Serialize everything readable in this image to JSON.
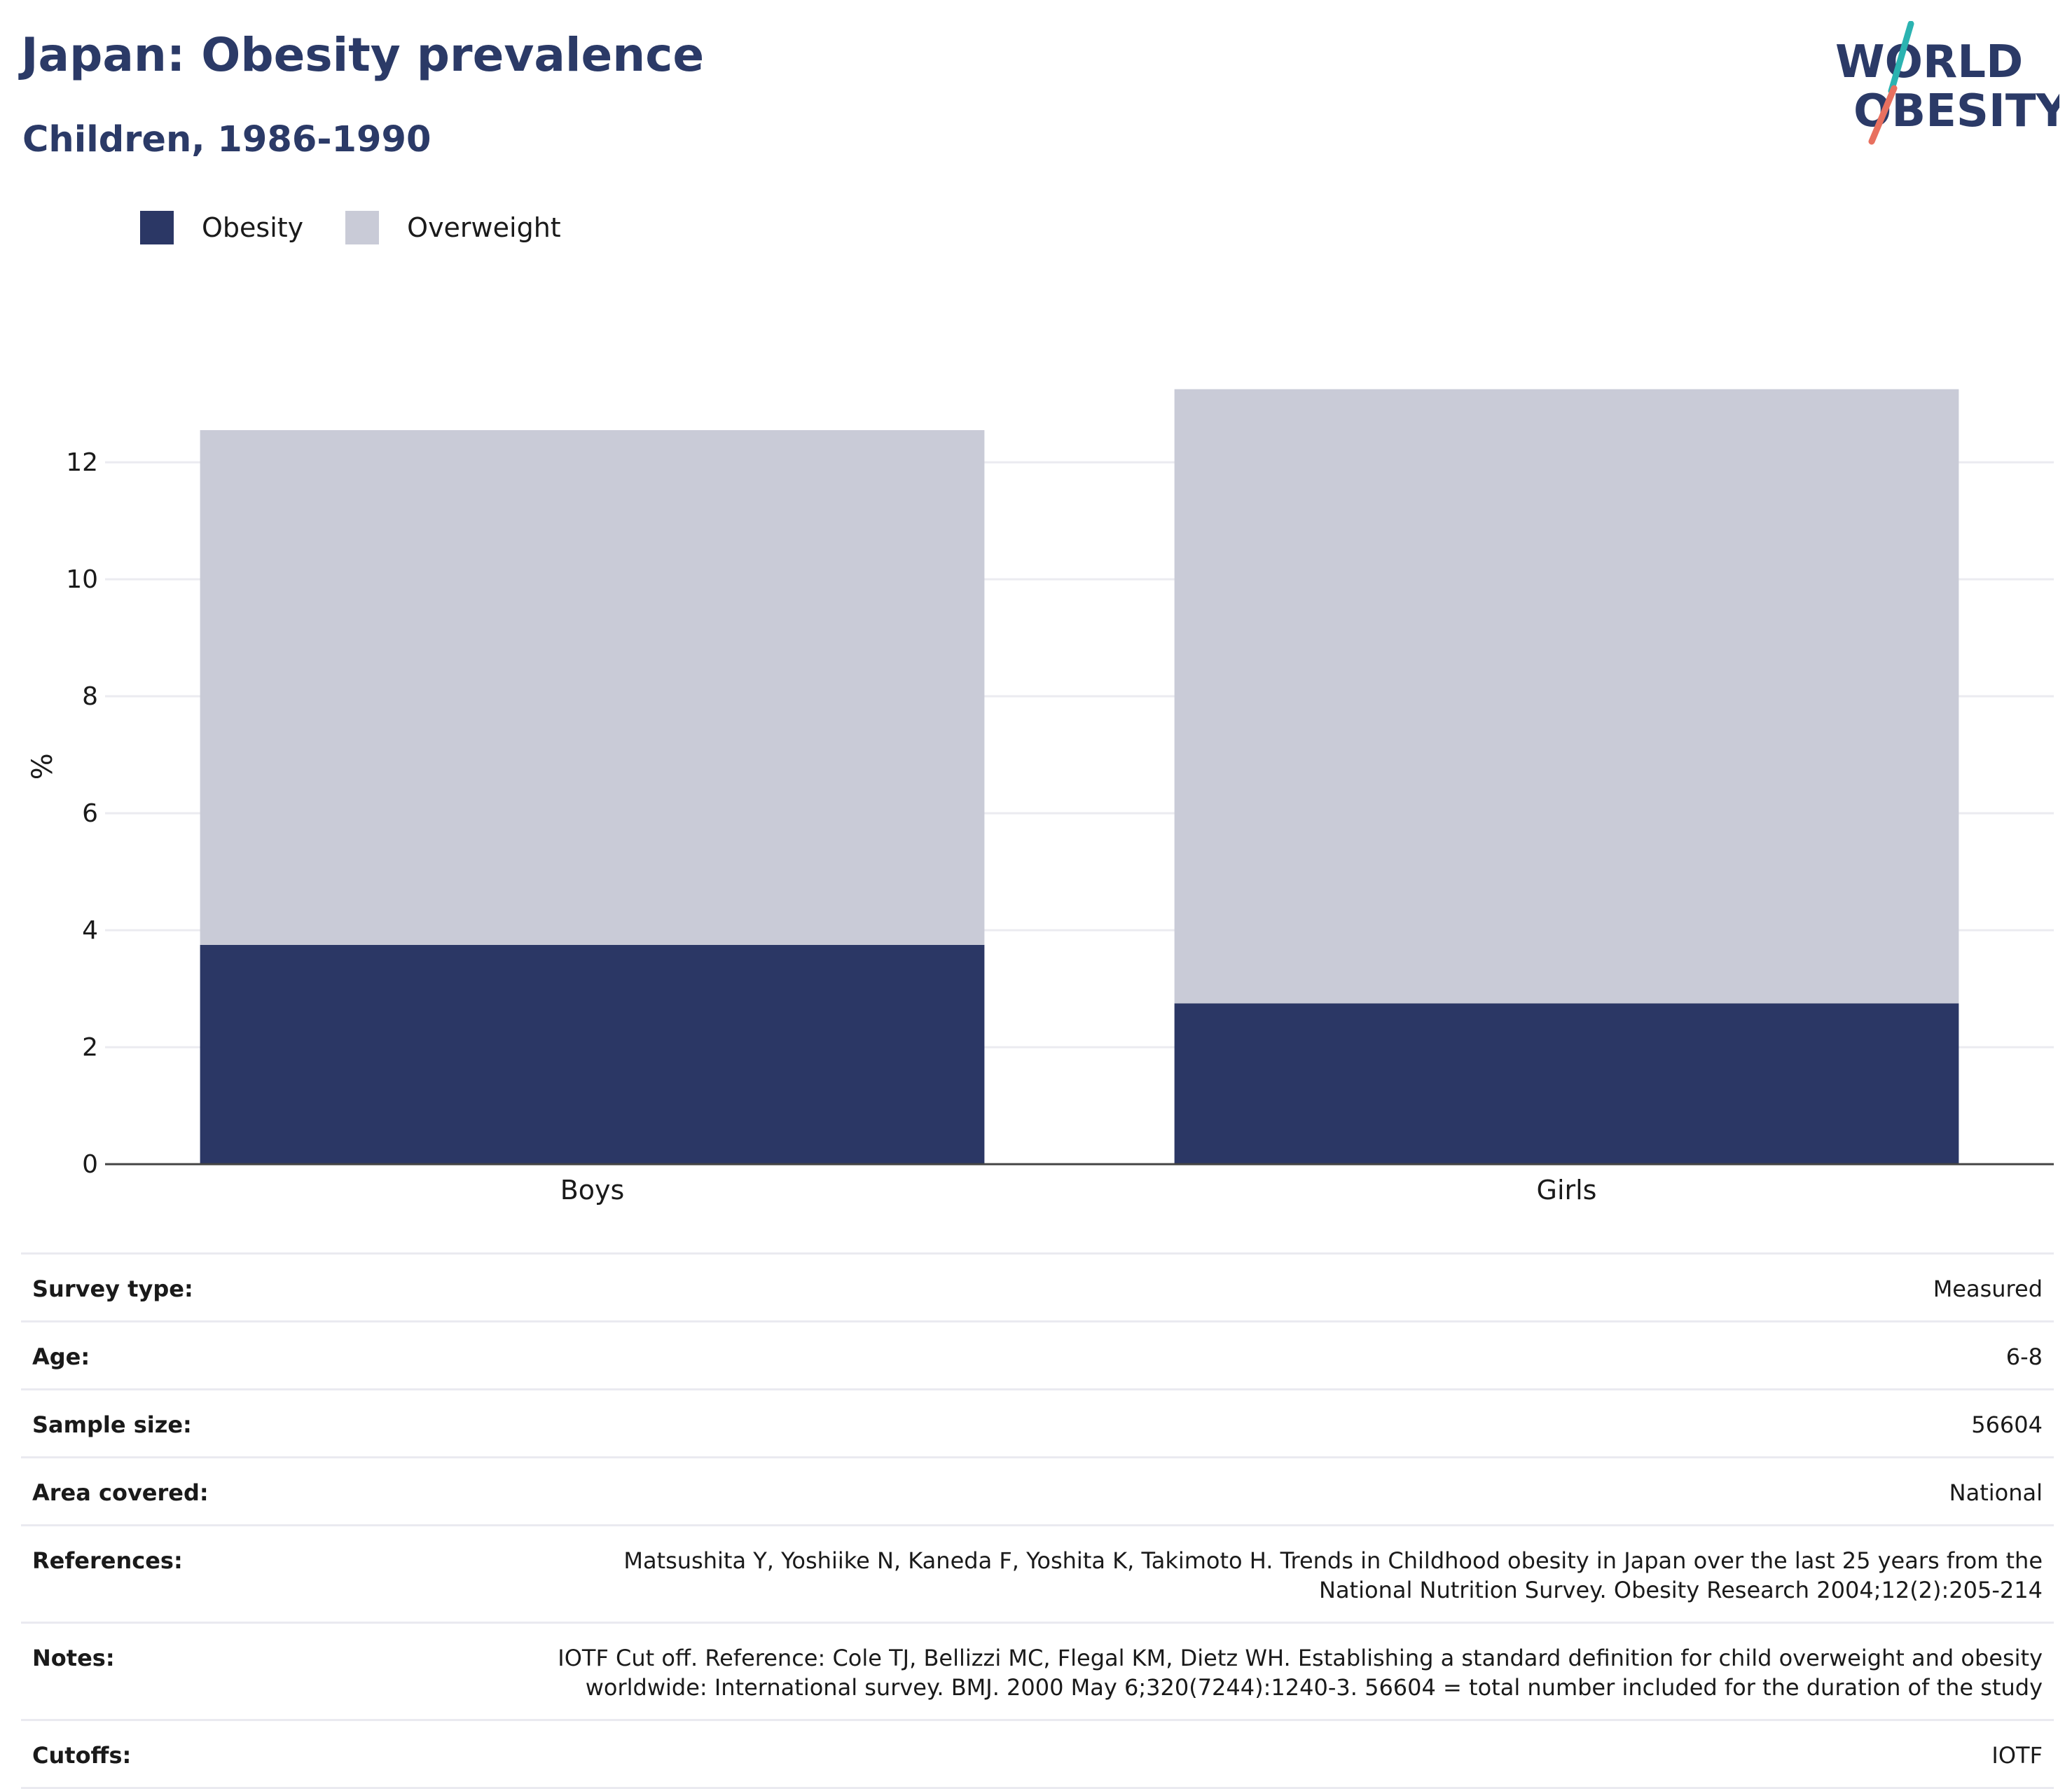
{
  "header": {
    "title": "Japan: Obesity prevalence",
    "subtitle": "Children, 1986-1990",
    "logo_line1": "WORLD",
    "logo_line2": "OBESITY"
  },
  "colors": {
    "obesity": "#2b3765",
    "overweight": "#c9cbd7",
    "title": "#2b3a67",
    "logo_teal": "#2bb3b1",
    "logo_coral": "#e8705f"
  },
  "chart_data": {
    "type": "bar",
    "stacked": true,
    "categories": [
      "Boys",
      "Girls"
    ],
    "series": [
      {
        "name": "Obesity",
        "values": [
          3.75,
          2.75
        ]
      },
      {
        "name": "Overweight",
        "values": [
          8.8,
          10.5
        ]
      }
    ],
    "xlabel": "",
    "ylabel": "%",
    "ylim": [
      0,
      13.6
    ],
    "yticks": [
      0,
      2,
      4,
      6,
      8,
      10,
      12
    ],
    "grid": true,
    "legend": "top-left"
  },
  "info": [
    {
      "key": "Survey type:",
      "value": "Measured"
    },
    {
      "key": "Age:",
      "value": "6-8"
    },
    {
      "key": "Sample size:",
      "value": "56604"
    },
    {
      "key": "Area covered:",
      "value": "National"
    },
    {
      "key": "References:",
      "value": "Matsushita Y, Yoshiike N, Kaneda F, Yoshita K, Takimoto H. Trends in Childhood obesity in Japan over the last 25 years from the National Nutrition Survey. Obesity Research 2004;12(2):205-214"
    },
    {
      "key": "Notes:",
      "value": "IOTF Cut off. Reference: Cole TJ, Bellizzi MC, Flegal KM, Dietz WH. Establishing a standard definition for child overweight and obesity worldwide: International survey. BMJ. 2000 May 6;320(7244):1240-3. 56604 = total number included for the duration of the study"
    },
    {
      "key": "Cutoffs:",
      "value": "IOTF"
    }
  ]
}
